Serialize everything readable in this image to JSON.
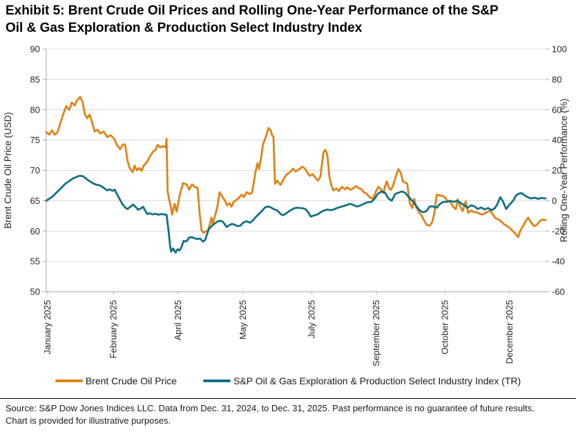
{
  "title": {
    "line1": "Exhibit 5: Brent Crude Oil Prices and Rolling One-Year Performance of the S&P",
    "line2": "Oil & Gas Exploration & Production Select Industry Index"
  },
  "source": {
    "text": "Source: S&P Dow Jones Indices LLC. Data from Dec. 31, 2024, to Dec. 31, 2025. Past performance is no guarantee of future results. Chart is provided for illustrative purposes."
  },
  "chart_data": {
    "type": "line",
    "title": "Exhibit 5: Brent Crude Oil Prices and Rolling One-Year Performance of the S&P Oil & Gas Exploration & Production Select Industry Index",
    "grid": true,
    "grid_color": "#D9D9D9",
    "axis_color": "#A6A6A6",
    "legend_position": "bottom",
    "x_unit": "fraction of period Dec. 31, 2024 to Dec. 31, 2025",
    "y_left": {
      "label": "Brent Crude Oil Price (USD)",
      "min": 50,
      "max": 90,
      "ticks": [
        50,
        55,
        60,
        65,
        70,
        75,
        80,
        85,
        90
      ]
    },
    "y_right": {
      "label": "Rolling One-Year Performance (%)",
      "min": -60,
      "max": 100,
      "ticks": [
        -60,
        -40,
        -20,
        0,
        20,
        40,
        60,
        80,
        100
      ]
    },
    "x_ticks": [
      {
        "pos": 0.003,
        "label": "January 2025"
      },
      {
        "pos": 0.135,
        "label": "February 2025"
      },
      {
        "pos": 0.264,
        "label": "April 2025"
      },
      {
        "pos": 0.394,
        "label": "May 2025"
      },
      {
        "pos": 0.532,
        "label": "July 2025"
      },
      {
        "pos": 0.661,
        "label": "September 2025"
      },
      {
        "pos": 0.799,
        "label": "October 2025"
      },
      {
        "pos": 0.928,
        "label": "December 2025"
      }
    ],
    "series": [
      {
        "name": "Brent Crude Oil Price",
        "axis": "left",
        "color": "#E08214",
        "x": [
          0,
          0.006,
          0.011,
          0.017,
          0.022,
          0.029,
          0.035,
          0.04,
          0.046,
          0.051,
          0.057,
          0.062,
          0.068,
          0.073,
          0.077,
          0.082,
          0.087,
          0.091,
          0.097,
          0.102,
          0.108,
          0.115,
          0.122,
          0.129,
          0.136,
          0.142,
          0.148,
          0.154,
          0.158,
          0.163,
          0.167,
          0.173,
          0.177,
          0.181,
          0.187,
          0.191,
          0.195,
          0.201,
          0.205,
          0.209,
          0.214,
          0.219,
          0.223,
          0.228,
          0.234,
          0.239,
          0.241,
          0.243,
          0.246,
          0.249,
          0.252,
          0.257,
          0.261,
          0.267,
          0.274,
          0.281,
          0.286,
          0.292,
          0.297,
          0.303,
          0.307,
          0.311,
          0.315,
          0.32,
          0.324,
          0.331,
          0.333,
          0.339,
          0.343,
          0.347,
          0.353,
          0.358,
          0.362,
          0.367,
          0.371,
          0.375,
          0.38,
          0.384,
          0.391,
          0.396,
          0.401,
          0.407,
          0.412,
          0.419,
          0.423,
          0.426,
          0.43,
          0.434,
          0.44,
          0.445,
          0.45,
          0.452,
          0.455,
          0.458,
          0.463,
          0.469,
          0.474,
          0.481,
          0.488,
          0.494,
          0.499,
          0.505,
          0.513,
          0.519,
          0.527,
          0.533,
          0.538,
          0.544,
          0.549,
          0.555,
          0.559,
          0.563,
          0.567,
          0.571,
          0.575,
          0.581,
          0.586,
          0.592,
          0.598,
          0.603,
          0.609,
          0.614,
          0.62,
          0.625,
          0.631,
          0.636,
          0.642,
          0.647,
          0.654,
          0.66,
          0.665,
          0.671,
          0.675,
          0.679,
          0.682,
          0.686,
          0.69,
          0.694,
          0.7,
          0.705,
          0.71,
          0.714,
          0.719,
          0.723,
          0.728,
          0.733,
          0.737,
          0.741,
          0.746,
          0.751,
          0.757,
          0.762,
          0.768,
          0.773,
          0.777,
          0.782,
          0.787,
          0.793,
          0.798,
          0.804,
          0.809,
          0.815,
          0.82,
          0.824,
          0.829,
          0.834,
          0.84,
          0.845,
          0.851,
          0.856,
          0.862,
          0.867,
          0.873,
          0.878,
          0.884,
          0.889,
          0.895,
          0.9,
          0.906,
          0.912,
          0.917,
          0.923,
          0.928,
          0.934,
          0.939,
          0.945,
          0.95,
          0.956,
          0.961,
          0.965,
          0.971,
          0.977,
          0.982,
          0.988,
          0.993,
          1
        ],
        "y": [
          76.3,
          75.9,
          76.6,
          75.9,
          76.2,
          78.0,
          79.5,
          80.6,
          80.0,
          81.2,
          80.7,
          81.6,
          82.1,
          81.2,
          79.3,
          78.6,
          79.2,
          78.1,
          76.4,
          76.7,
          76.1,
          76.4,
          75.5,
          75.8,
          75.2,
          74.1,
          73.5,
          74.3,
          74.2,
          71.5,
          70.4,
          69.7,
          70.8,
          70.0,
          70.4,
          69.9,
          70.8,
          71.3,
          71.9,
          72.5,
          73.1,
          73.4,
          74.2,
          73.8,
          74.0,
          73.8,
          75.2,
          66.5,
          65.2,
          64.2,
          62.7,
          64.5,
          63.2,
          65.8,
          67.9,
          67.7,
          66.8,
          67.7,
          67.3,
          67.1,
          63.0,
          60.1,
          59.7,
          60.0,
          60.1,
          62.2,
          61.2,
          62.8,
          64.2,
          66.4,
          65.6,
          65.0,
          64.2,
          64.6,
          64.0,
          64.8,
          65.1,
          65.3,
          66.0,
          65.6,
          66.4,
          66.1,
          66.3,
          69.7,
          71.2,
          70.2,
          72.0,
          74.3,
          75.6,
          77.0,
          76.5,
          75.8,
          75.5,
          67.8,
          68.3,
          67.6,
          68.4,
          69.3,
          69.7,
          70.3,
          69.8,
          70.1,
          70.6,
          70.2,
          69.1,
          69.4,
          68.9,
          68.3,
          69.0,
          73.0,
          73.4,
          72.5,
          69.0,
          67.5,
          66.7,
          67.0,
          66.6,
          67.3,
          66.9,
          67.2,
          66.8,
          67.0,
          67.4,
          67.1,
          66.9,
          66.4,
          66.1,
          65.6,
          65.3,
          66.5,
          67.3,
          66.8,
          66.3,
          67.5,
          68.2,
          67.1,
          66.8,
          67.4,
          69.0,
          70.2,
          69.6,
          68.2,
          68.0,
          67.8,
          64.6,
          63.8,
          65.3,
          63.9,
          63.2,
          62.6,
          61.7,
          61.0,
          60.9,
          61.5,
          62.9,
          66.0,
          65.9,
          65.8,
          65.6,
          64.9,
          64.8,
          64.0,
          63.6,
          65.2,
          64.0,
          63.3,
          64.9,
          63.0,
          63.4,
          63.1,
          63.1,
          62.9,
          62.7,
          62.9,
          63.2,
          63.4,
          62.6,
          62.1,
          61.9,
          61.5,
          61.1,
          60.8,
          60.5,
          60.0,
          59.6,
          59.0,
          60.2,
          61.0,
          61.8,
          62.2,
          61.4,
          60.8,
          61.0,
          61.6,
          61.9,
          61.8
        ]
      },
      {
        "name": "S&P Oil & Gas Exploration & Production Select Industry Index (TR)",
        "axis": "right",
        "color": "#117086",
        "x": [
          0,
          0.007,
          0.014,
          0.021,
          0.028,
          0.033,
          0.039,
          0.046,
          0.053,
          0.059,
          0.066,
          0.073,
          0.079,
          0.083,
          0.089,
          0.094,
          0.101,
          0.108,
          0.115,
          0.122,
          0.127,
          0.133,
          0.137,
          0.142,
          0.148,
          0.152,
          0.159,
          0.163,
          0.17,
          0.174,
          0.18,
          0.184,
          0.19,
          0.194,
          0.198,
          0.202,
          0.207,
          0.213,
          0.219,
          0.224,
          0.23,
          0.235,
          0.241,
          0.245,
          0.248,
          0.25,
          0.254,
          0.259,
          0.263,
          0.267,
          0.271,
          0.275,
          0.281,
          0.286,
          0.292,
          0.297,
          0.303,
          0.308,
          0.314,
          0.318,
          0.322,
          0.326,
          0.332,
          0.337,
          0.343,
          0.349,
          0.354,
          0.361,
          0.367,
          0.372,
          0.378,
          0.383,
          0.389,
          0.394,
          0.401,
          0.408,
          0.414,
          0.419,
          0.425,
          0.429,
          0.434,
          0.438,
          0.444,
          0.45,
          0.455,
          0.461,
          0.466,
          0.47,
          0.474,
          0.48,
          0.486,
          0.491,
          0.497,
          0.502,
          0.508,
          0.513,
          0.519,
          0.524,
          0.53,
          0.535,
          0.541,
          0.546,
          0.552,
          0.557,
          0.563,
          0.569,
          0.574,
          0.581,
          0.588,
          0.595,
          0.602,
          0.609,
          0.616,
          0.622,
          0.629,
          0.636,
          0.643,
          0.651,
          0.658,
          0.664,
          0.671,
          0.678,
          0.685,
          0.692,
          0.699,
          0.705,
          0.712,
          0.719,
          0.726,
          0.733,
          0.74,
          0.747,
          0.754,
          0.761,
          0.768,
          0.775,
          0.782,
          0.788,
          0.795,
          0.802,
          0.809,
          0.816,
          0.823,
          0.83,
          0.837,
          0.844,
          0.851,
          0.858,
          0.864,
          0.871,
          0.878,
          0.885,
          0.892,
          0.898,
          0.903,
          0.909,
          0.914,
          0.921,
          0.928,
          0.935,
          0.941,
          0.946,
          0.952,
          0.957,
          0.964,
          0.971,
          0.978,
          0.985,
          0.992,
          1
        ],
        "y": [
          0,
          1.5,
          3.2,
          5.5,
          7.7,
          9.5,
          11.4,
          13.0,
          14.6,
          15.5,
          16.4,
          16.2,
          14.8,
          13.7,
          12.5,
          11.4,
          10.5,
          10.0,
          8.5,
          6.8,
          7.5,
          6.5,
          7.3,
          4.0,
          0.5,
          -2.0,
          -4.8,
          -5.5,
          -3.5,
          -2.5,
          -4.5,
          -6.0,
          -5.0,
          -4.0,
          -6.5,
          -8.7,
          -8.3,
          -9.0,
          -8.6,
          -9.2,
          -8.8,
          -9.0,
          -9.3,
          -20.0,
          -30.0,
          -33.5,
          -31.5,
          -34.2,
          -32.0,
          -32.8,
          -30.5,
          -26.5,
          -26.8,
          -24.3,
          -24.0,
          -24.8,
          -25.2,
          -25.0,
          -27.0,
          -26.0,
          -22.0,
          -18.5,
          -16.5,
          -15.0,
          -13.7,
          -13.2,
          -14.0,
          -17.3,
          -16.0,
          -15.3,
          -15.9,
          -16.8,
          -16.4,
          -14.5,
          -13.5,
          -14.5,
          -13.0,
          -11.0,
          -9.0,
          -7.7,
          -6.0,
          -4.5,
          -3.8,
          -4.5,
          -5.5,
          -6.2,
          -7.5,
          -9.0,
          -9.6,
          -8.5,
          -7.0,
          -6.0,
          -5.0,
          -4.6,
          -4.8,
          -5.0,
          -5.5,
          -7.5,
          -10.5,
          -9.8,
          -9.3,
          -8.5,
          -7.0,
          -6.4,
          -5.8,
          -6.2,
          -6.0,
          -5.0,
          -4.2,
          -3.5,
          -2.8,
          -2.0,
          -3.0,
          -3.8,
          -3.2,
          -2.0,
          -1.0,
          -0.8,
          1.5,
          4.6,
          6.1,
          5.4,
          1.5,
          0.0,
          4.6,
          5.2,
          6.1,
          5.2,
          2.3,
          0.0,
          -3.0,
          -6.1,
          -7.6,
          -7.0,
          -3.8,
          -3.8,
          -4.6,
          -2.3,
          -0.8,
          -0.8,
          0.0,
          -0.8,
          0.0,
          -1.5,
          -3.0,
          -4.6,
          -3.0,
          -3.8,
          -5.5,
          -4.5,
          -5.8,
          -4.8,
          -6.2,
          -5.0,
          -2.5,
          2.3,
          0.0,
          -5.5,
          -2.5,
          0.0,
          3.5,
          4.6,
          5.0,
          3.8,
          2.3,
          1.5,
          2.0,
          1.2,
          1.8,
          1.5
        ]
      }
    ]
  }
}
